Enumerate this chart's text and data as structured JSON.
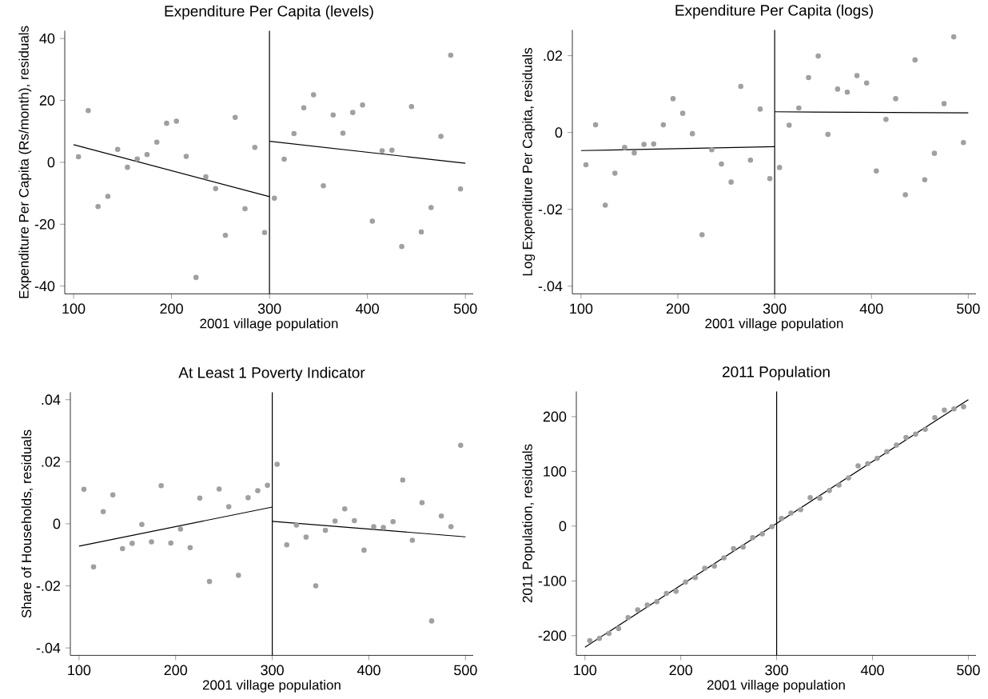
{
  "chart_data": [
    {
      "type": "scatter",
      "title": "Expenditure Per Capita (levels)",
      "xlabel": "2001 village population",
      "ylabel": "Expenditure Per Capita (Rs/month), residuals",
      "xlim": [
        91,
        508
      ],
      "ylim": [
        -42.5,
        42.5
      ],
      "xticks": [
        100,
        200,
        300,
        400,
        500
      ],
      "yticks": [
        -40,
        -20,
        0,
        20,
        40
      ],
      "ref_lines": [
        {
          "axis": "x",
          "value": 300,
          "color": "#000000"
        }
      ],
      "series": [
        {
          "type": "scatter",
          "marker": "circle",
          "color": "#a0a0a0",
          "x": [
            105,
            115,
            125,
            135,
            145,
            155,
            165,
            175,
            185,
            195,
            205,
            215,
            225,
            235,
            245,
            255,
            265,
            275,
            285,
            295,
            305,
            315,
            325,
            335,
            345,
            355,
            365,
            375,
            385,
            395,
            405,
            415,
            425,
            435,
            445,
            455,
            465,
            475,
            485,
            495
          ],
          "values": [
            1.8,
            16.7,
            -14.3,
            -11.0,
            4.2,
            -1.6,
            1.1,
            2.5,
            6.5,
            12.6,
            13.3,
            1.9,
            -37.2,
            -4.7,
            -8.5,
            -23.6,
            14.5,
            -15.0,
            4.8,
            -22.7,
            -11.6,
            1.0,
            9.3,
            17.6,
            21.8,
            -7.6,
            15.3,
            9.4,
            16.1,
            18.5,
            -19.0,
            3.7,
            3.9,
            -27.2,
            18.0,
            -22.5,
            -14.6,
            8.4,
            34.6,
            -8.6
          ]
        },
        {
          "type": "line",
          "marker": "none",
          "color": "#000000",
          "x": [
            100,
            300
          ],
          "values": [
            5.7,
            -11.1
          ]
        },
        {
          "type": "line",
          "marker": "none",
          "color": "#000000",
          "x": [
            300,
            500
          ],
          "values": [
            6.8,
            -0.3
          ]
        }
      ]
    },
    {
      "type": "scatter",
      "title": "Expenditure Per Capita (logs)",
      "xlabel": "2001 village population",
      "ylabel": "Log Expenditure Per Capita, residuals",
      "xlim": [
        91,
        508
      ],
      "ylim": [
        -0.042,
        0.0267
      ],
      "xticks": [
        100,
        200,
        300,
        400,
        500
      ],
      "yticks": [
        {
          "value": -0.04,
          "label": "-.04"
        },
        {
          "value": -0.02,
          "label": "-.02"
        },
        0,
        {
          "value": 0.02,
          "label": ".02"
        }
      ],
      "ref_lines": [
        {
          "axis": "x",
          "value": 300,
          "color": "#000000"
        }
      ],
      "series": [
        {
          "type": "scatter",
          "marker": "circle",
          "color": "#a0a0a0",
          "x": [
            105,
            115,
            125,
            135,
            145,
            155,
            165,
            175,
            185,
            195,
            205,
            215,
            225,
            235,
            245,
            255,
            265,
            275,
            285,
            295,
            305,
            315,
            325,
            335,
            345,
            355,
            365,
            375,
            385,
            395,
            405,
            415,
            425,
            435,
            445,
            455,
            465,
            475,
            485,
            495
          ],
          "values": [
            -0.0084,
            0.002,
            -0.0189,
            -0.0106,
            -0.0039,
            -0.0053,
            -0.0031,
            -0.003,
            0.002,
            0.0088,
            0.005,
            -0.0003,
            -0.0266,
            -0.0045,
            -0.0082,
            -0.0129,
            0.012,
            -0.0072,
            0.0061,
            -0.012,
            -0.0091,
            0.0019,
            0.0064,
            0.0143,
            0.0199,
            -0.0005,
            0.0113,
            0.0105,
            0.0148,
            0.0129,
            -0.01,
            0.0034,
            0.0088,
            -0.0162,
            0.0189,
            -0.0123,
            -0.0054,
            0.0075,
            0.0249,
            -0.0026
          ]
        },
        {
          "type": "line",
          "marker": "none",
          "color": "#000000",
          "x": [
            100,
            300
          ],
          "values": [
            -0.0047,
            -0.0037
          ]
        },
        {
          "type": "line",
          "marker": "none",
          "color": "#000000",
          "x": [
            300,
            500
          ],
          "values": [
            0.0054,
            0.0051
          ]
        }
      ]
    },
    {
      "type": "scatter",
      "title": "At Least 1 Poverty Indicator",
      "xlabel": "2001 village population",
      "ylabel": "Share of Households, residuals",
      "xlim": [
        91,
        508
      ],
      "ylim": [
        -0.0424,
        0.0424
      ],
      "xticks": [
        100,
        200,
        300,
        400,
        500
      ],
      "yticks": [
        {
          "value": -0.04,
          "label": "-.04"
        },
        {
          "value": -0.02,
          "label": "-.02"
        },
        0,
        {
          "value": 0.02,
          "label": ".02"
        },
        {
          "value": 0.04,
          "label": ".04"
        }
      ],
      "ref_lines": [
        {
          "axis": "x",
          "value": 300,
          "color": "#000000"
        }
      ],
      "series": [
        {
          "type": "scatter",
          "marker": "circle",
          "color": "#a0a0a0",
          "x": [
            105,
            115,
            125,
            135,
            145,
            155,
            165,
            175,
            185,
            195,
            205,
            215,
            225,
            235,
            245,
            255,
            265,
            275,
            285,
            295,
            305,
            315,
            325,
            335,
            345,
            355,
            365,
            375,
            385,
            395,
            405,
            415,
            425,
            435,
            445,
            455,
            465,
            475,
            485,
            495
          ],
          "values": [
            0.0111,
            -0.0139,
            0.0039,
            0.0093,
            -0.008,
            -0.0063,
            -0.0002,
            -0.0058,
            0.0123,
            -0.0062,
            -0.0017,
            -0.0077,
            0.0083,
            -0.0186,
            0.0112,
            0.0055,
            -0.0166,
            0.0084,
            0.0107,
            0.0124,
            0.0192,
            -0.0068,
            -0.0004,
            -0.0043,
            -0.02,
            -0.0021,
            0.0009,
            0.0048,
            0.001,
            -0.0085,
            -0.0009,
            -0.0012,
            0.0007,
            0.0141,
            -0.0053,
            0.0068,
            -0.0313,
            0.0025,
            -0.0009,
            0.0253
          ]
        },
        {
          "type": "line",
          "marker": "none",
          "color": "#000000",
          "x": [
            100,
            300
          ],
          "values": [
            -0.0072,
            0.0054
          ]
        },
        {
          "type": "line",
          "marker": "none",
          "color": "#000000",
          "x": [
            300,
            500
          ],
          "values": [
            0.0008,
            -0.0042
          ]
        }
      ]
    },
    {
      "type": "scatter",
      "title": "2011 Population",
      "xlabel": "2001 village population",
      "ylabel": "2011 Population, residuals",
      "xlim": [
        91,
        508
      ],
      "ylim": [
        -236,
        246
      ],
      "xticks": [
        100,
        200,
        300,
        400,
        500
      ],
      "yticks": [
        -200,
        -100,
        0,
        100,
        200
      ],
      "ref_lines": [
        {
          "axis": "x",
          "value": 300,
          "color": "#000000"
        }
      ],
      "series": [
        {
          "type": "scatter",
          "marker": "circle",
          "color": "#a0a0a0",
          "x": [
            105,
            115,
            125,
            135,
            145,
            155,
            165,
            175,
            185,
            195,
            205,
            215,
            225,
            235,
            245,
            255,
            265,
            275,
            285,
            295,
            305,
            315,
            325,
            335,
            345,
            355,
            365,
            375,
            385,
            395,
            405,
            415,
            425,
            435,
            445,
            455,
            465,
            475,
            485,
            495
          ],
          "values": [
            -209,
            -205,
            -196,
            -187,
            -167,
            -153,
            -144,
            -138,
            -123,
            -119,
            -102,
            -94,
            -77,
            -73,
            -58,
            -41,
            -38,
            -21,
            -14,
            -1,
            14,
            24,
            30,
            52,
            51,
            65,
            75,
            88,
            110,
            114,
            124,
            136,
            148,
            162,
            168,
            177,
            198,
            212,
            214,
            218
          ]
        },
        {
          "type": "line",
          "marker": "none",
          "color": "#000000",
          "x": [
            100,
            500
          ],
          "values": [
            -221,
            231
          ]
        }
      ]
    }
  ]
}
